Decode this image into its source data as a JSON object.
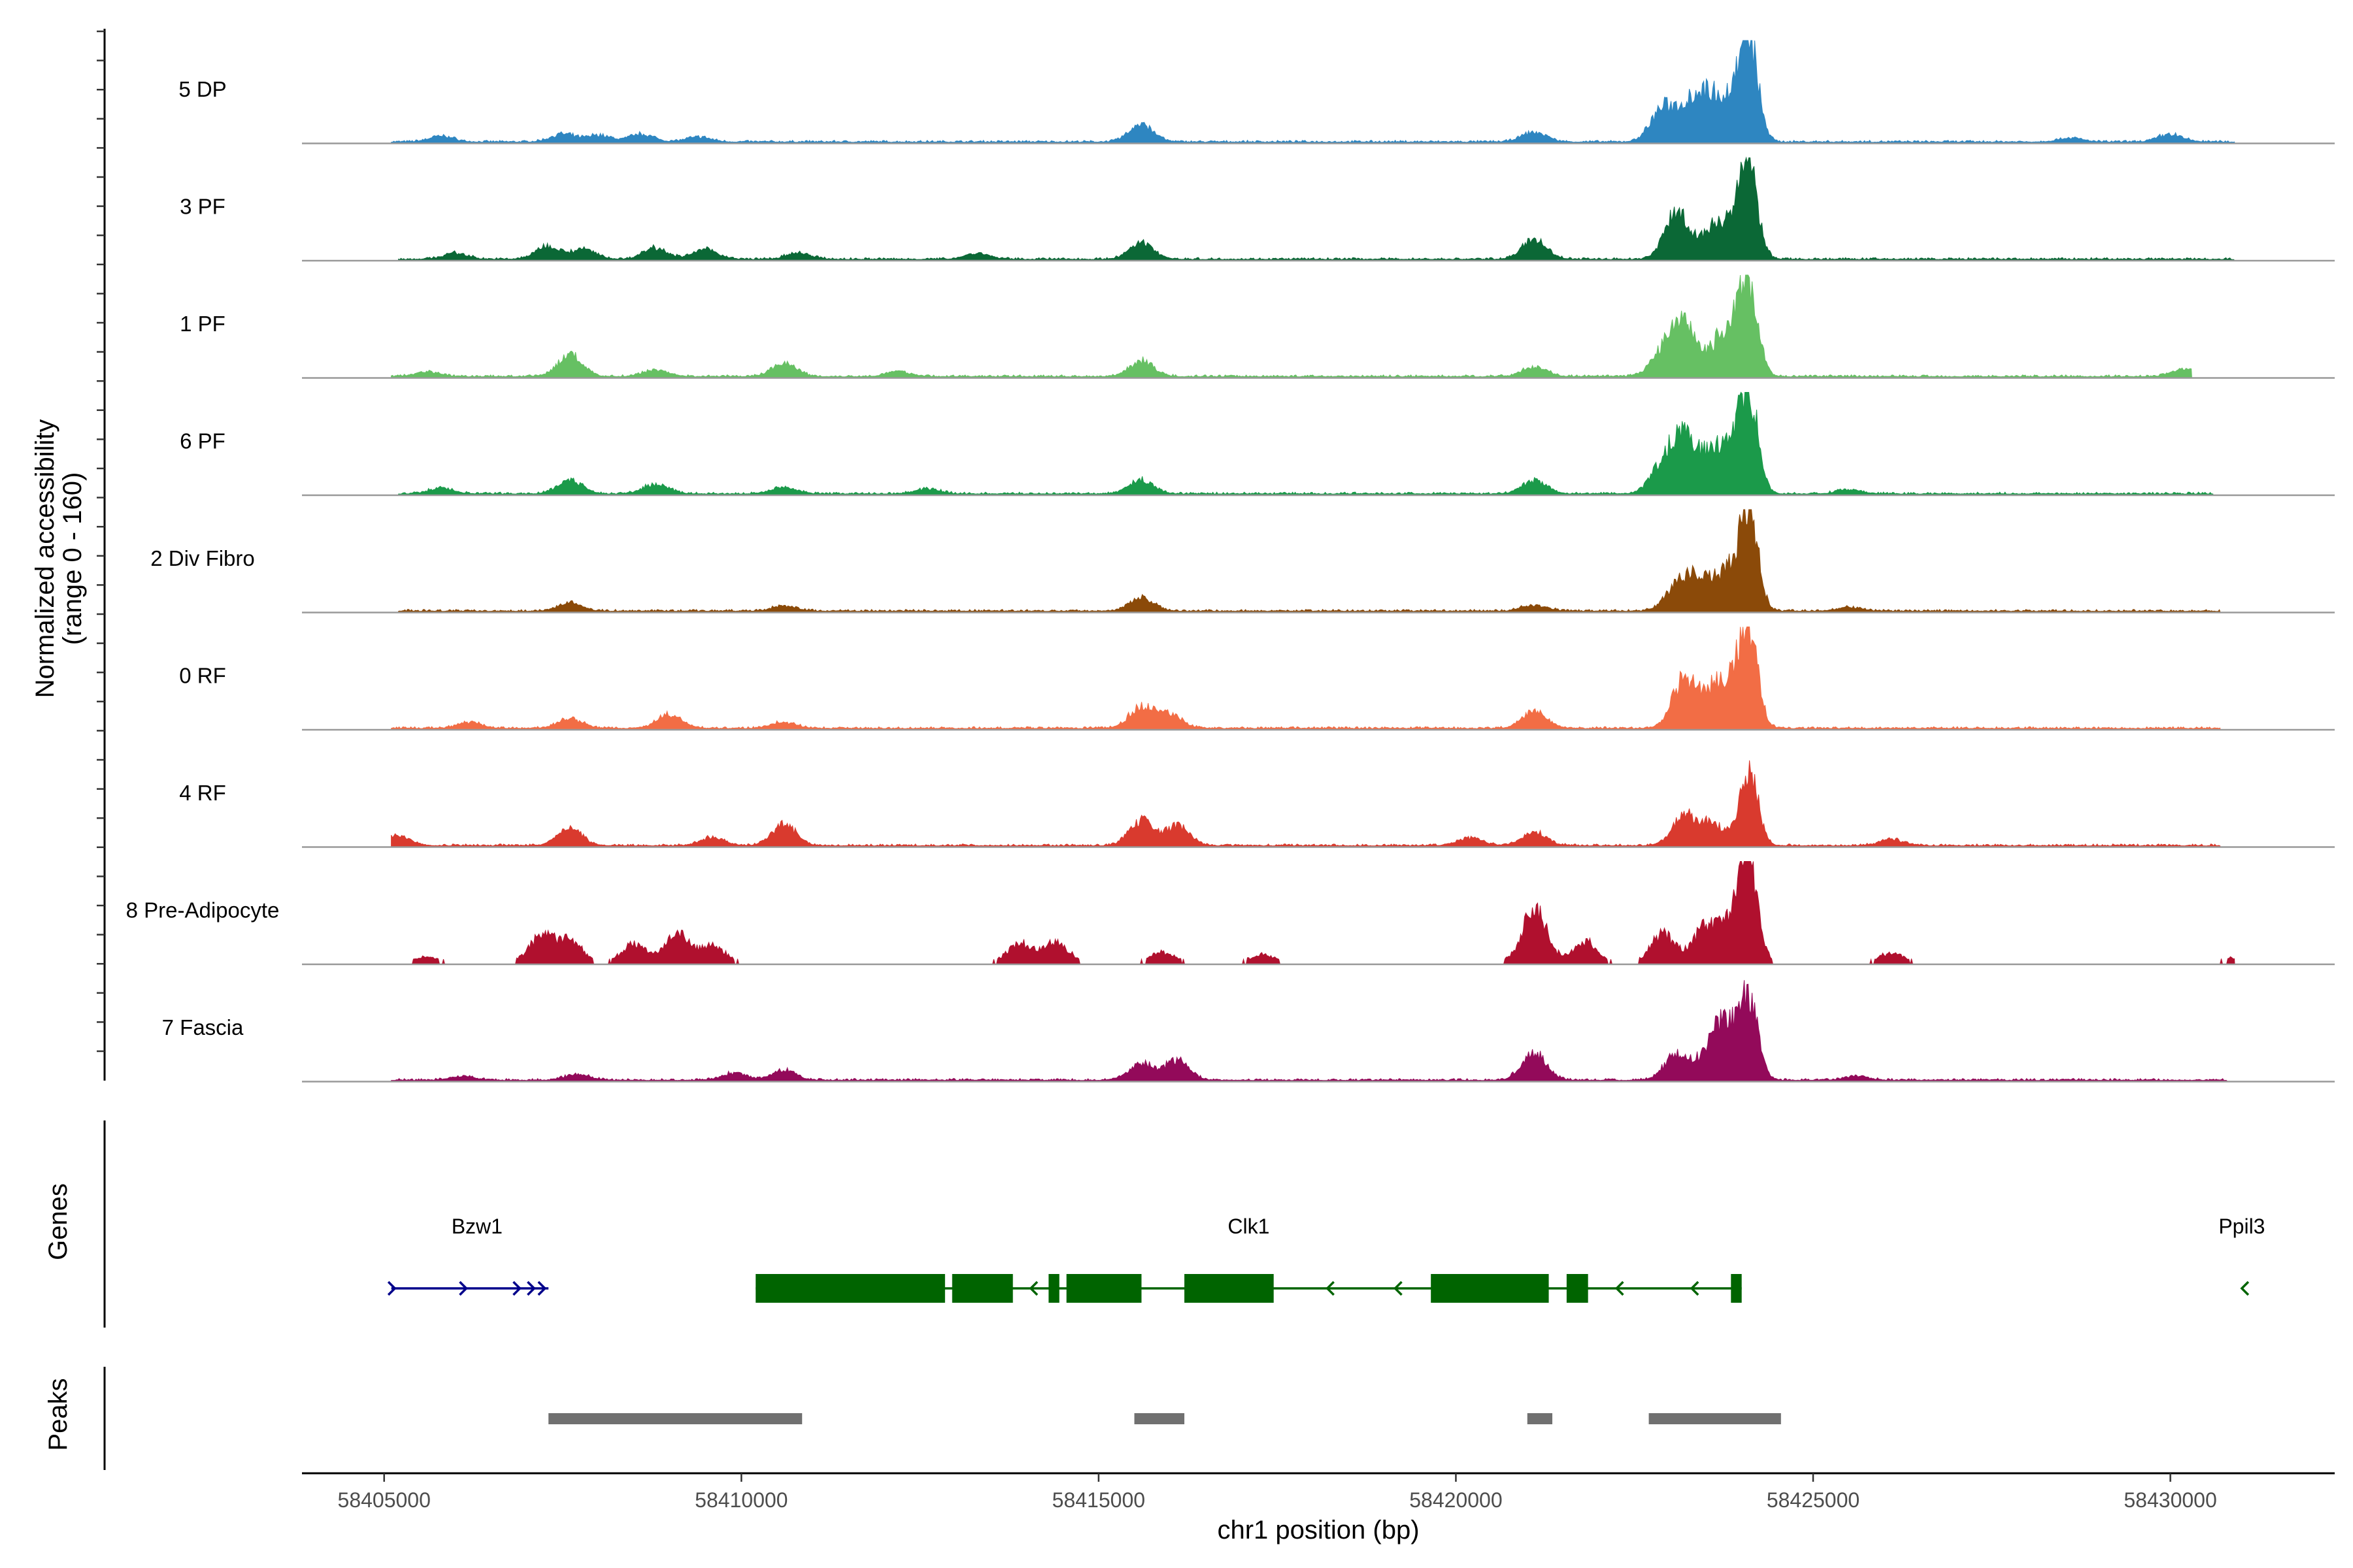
{
  "chart_data": {
    "type": "area",
    "title": "",
    "ylabel_line1": "Normalized accessibility",
    "ylabel_line2": "(range 0 - 160)",
    "xlabel": "chr1 position (bp)",
    "y_range": [
      0,
      160
    ],
    "x_range": [
      58403850,
      58432300
    ],
    "x_ticks": [
      58405000,
      58410000,
      58415000,
      58420000,
      58425000,
      58430000
    ],
    "x_tick_labels": [
      "58405000",
      "58410000",
      "58415000",
      "58420000",
      "58425000",
      "58430000"
    ],
    "track_panel_title": "Genes",
    "peak_panel_title": "Peaks",
    "tracks": [
      {
        "name": "5 DP",
        "color": "#2E86C1",
        "start": 58405100,
        "end": 58430900,
        "peaks": [
          [
            58405800,
            0.06
          ],
          [
            58407500,
            0.08
          ],
          [
            58408000,
            0.07
          ],
          [
            58408600,
            0.08
          ],
          [
            58409400,
            0.05
          ],
          [
            58415600,
            0.18
          ],
          [
            58421100,
            0.1
          ],
          [
            58422900,
            0.35
          ],
          [
            58423300,
            0.4
          ],
          [
            58423600,
            0.38
          ],
          [
            58423900,
            0.32
          ],
          [
            58424100,
            1.0
          ],
          [
            58428600,
            0.04
          ],
          [
            58430000,
            0.08
          ]
        ]
      },
      {
        "name": "3 PF",
        "color": "#0B6836",
        "start": 58405200,
        "end": 58430900,
        "peaks": [
          [
            58406000,
            0.06
          ],
          [
            58407300,
            0.14
          ],
          [
            58407800,
            0.1
          ],
          [
            58408800,
            0.12
          ],
          [
            58409500,
            0.1
          ],
          [
            58410800,
            0.06
          ],
          [
            58413300,
            0.06
          ],
          [
            58415600,
            0.16
          ],
          [
            58421100,
            0.2
          ],
          [
            58423100,
            0.5
          ],
          [
            58423600,
            0.28
          ],
          [
            58423900,
            0.32
          ],
          [
            58424100,
            0.85
          ]
        ]
      },
      {
        "name": "1 PF",
        "color": "#66C063",
        "start": 58405100,
        "end": 58430300,
        "peaks": [
          [
            58405600,
            0.05
          ],
          [
            58407600,
            0.22
          ],
          [
            58408800,
            0.07
          ],
          [
            58410600,
            0.14
          ],
          [
            58412200,
            0.05
          ],
          [
            58415600,
            0.16
          ],
          [
            58421100,
            0.1
          ],
          [
            58422900,
            0.25
          ],
          [
            58423200,
            0.5
          ],
          [
            58423700,
            0.3
          ],
          [
            58423900,
            0.28
          ],
          [
            58424100,
            0.88
          ],
          [
            58430200,
            0.08
          ]
        ]
      },
      {
        "name": "6 PF",
        "color": "#1B9A4A",
        "start": 58405200,
        "end": 58430600,
        "peaks": [
          [
            58405800,
            0.06
          ],
          [
            58407600,
            0.14
          ],
          [
            58408800,
            0.1
          ],
          [
            58410600,
            0.07
          ],
          [
            58412600,
            0.05
          ],
          [
            58415600,
            0.14
          ],
          [
            58421100,
            0.14
          ],
          [
            58422900,
            0.3
          ],
          [
            58423200,
            0.58
          ],
          [
            58423600,
            0.38
          ],
          [
            58423900,
            0.34
          ],
          [
            58424100,
            0.95
          ],
          [
            58425500,
            0.04
          ]
        ]
      },
      {
        "name": "2 Div Fibro",
        "color": "#8B4A09",
        "start": 58405200,
        "end": 58430700,
        "peaks": [
          [
            58407600,
            0.08
          ],
          [
            58410600,
            0.05
          ],
          [
            58415600,
            0.14
          ],
          [
            58421100,
            0.06
          ],
          [
            58423100,
            0.25
          ],
          [
            58423400,
            0.3
          ],
          [
            58423800,
            0.4
          ],
          [
            58424100,
            1.0
          ],
          [
            58425500,
            0.04
          ]
        ]
      },
      {
        "name": "0 RF",
        "color": "#F26D45",
        "start": 58405100,
        "end": 58430700,
        "peaks": [
          [
            58406200,
            0.06
          ],
          [
            58407600,
            0.1
          ],
          [
            58409000,
            0.14
          ],
          [
            58410600,
            0.06
          ],
          [
            58415600,
            0.22
          ],
          [
            58416000,
            0.14
          ],
          [
            58421100,
            0.18
          ],
          [
            58423200,
            0.5
          ],
          [
            58423600,
            0.36
          ],
          [
            58423900,
            0.34
          ],
          [
            58424100,
            0.95
          ]
        ]
      },
      {
        "name": "4 RF",
        "color": "#D93A2E",
        "start": 58405100,
        "end": 58430700,
        "peaks": [
          [
            58405200,
            0.1
          ],
          [
            58407600,
            0.18
          ],
          [
            58409600,
            0.08
          ],
          [
            58410600,
            0.22
          ],
          [
            58415600,
            0.26
          ],
          [
            58416100,
            0.2
          ],
          [
            58420200,
            0.08
          ],
          [
            58421100,
            0.14
          ],
          [
            58423200,
            0.3
          ],
          [
            58423600,
            0.22
          ],
          [
            58424100,
            0.78
          ],
          [
            58426100,
            0.06
          ]
        ]
      },
      {
        "name": "8 Pre-Adipocyte",
        "color": "#B0102E",
        "start": 58405300,
        "end": 58430900,
        "peaks": [
          [
            58405600,
            0.06
          ],
          [
            58407200,
            0.28
          ],
          [
            58407600,
            0.22
          ],
          [
            58408500,
            0.2
          ],
          [
            58409100,
            0.3
          ],
          [
            58409600,
            0.18
          ],
          [
            58413900,
            0.2
          ],
          [
            58414400,
            0.22
          ],
          [
            58415900,
            0.1
          ],
          [
            58417300,
            0.08
          ],
          [
            58421100,
            0.55
          ],
          [
            58421800,
            0.22
          ],
          [
            58422900,
            0.3
          ],
          [
            58423500,
            0.38
          ],
          [
            58423900,
            0.42
          ],
          [
            58424100,
            1.0
          ],
          [
            58426100,
            0.1
          ],
          [
            58430900,
            0.05
          ]
        ]
      },
      {
        "name": "7 Fascia",
        "color": "#930A5A",
        "start": 58405100,
        "end": 58430800,
        "peaks": [
          [
            58406100,
            0.04
          ],
          [
            58407700,
            0.06
          ],
          [
            58409900,
            0.07
          ],
          [
            58410600,
            0.1
          ],
          [
            58415600,
            0.18
          ],
          [
            58416100,
            0.2
          ],
          [
            58421100,
            0.28
          ],
          [
            58423100,
            0.28
          ],
          [
            58423600,
            0.34
          ],
          [
            58423800,
            0.38
          ],
          [
            58424100,
            0.85
          ],
          [
            58425600,
            0.04
          ]
        ]
      }
    ],
    "genes": [
      {
        "name": "Bzw1",
        "color": "#00008B",
        "strand": "+",
        "start": 58405100,
        "end": 58407300,
        "exons": [],
        "label_x": 58406300
      },
      {
        "name": "Clk1",
        "color": "#006400",
        "strand": "-",
        "start": 58410200,
        "end": 58424000,
        "exons": [
          [
            58410200,
            58412850
          ],
          [
            58412950,
            58413800
          ],
          [
            58414300,
            58414450
          ],
          [
            58414550,
            58415600
          ],
          [
            58416200,
            58417450
          ],
          [
            58419650,
            58421300
          ],
          [
            58421550,
            58421850
          ],
          [
            58423850,
            58424000
          ]
        ],
        "label_x": 58417100
      },
      {
        "name": "Ppil3",
        "color": "#006400",
        "strand": "-",
        "start": 58430950,
        "end": 58431050,
        "exons": [],
        "label_x": 58431000
      }
    ],
    "peaks": [
      [
        58407300,
        58410850
      ],
      [
        58415500,
        58416200
      ],
      [
        58421000,
        58421350
      ],
      [
        58422700,
        58424550
      ]
    ]
  }
}
